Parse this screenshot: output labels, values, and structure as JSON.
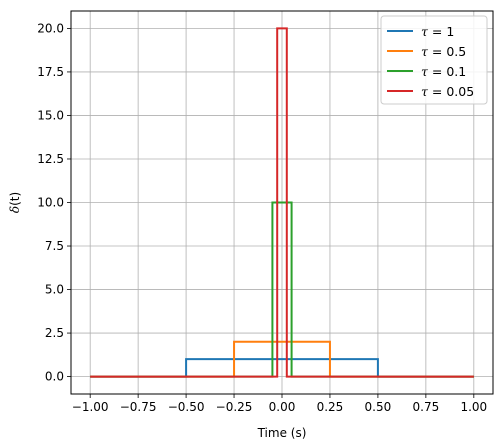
{
  "chart_data": {
    "type": "line",
    "title": "",
    "xlabel": "Time (s)",
    "ylabel_symbol": "δ",
    "ylabel_arg": "(t)",
    "xlim": [
      -1.1,
      1.1
    ],
    "ylim": [
      -1.0,
      21.0
    ],
    "x_ticks": [
      -1.0,
      -0.75,
      -0.5,
      -0.25,
      0.0,
      0.25,
      0.5,
      0.75,
      1.0
    ],
    "x_tick_labels": [
      "−1.00",
      "−0.75",
      "−0.50",
      "−0.25",
      "0.00",
      "0.25",
      "0.50",
      "0.75",
      "1.00"
    ],
    "y_ticks": [
      0,
      2.5,
      5,
      7.5,
      10,
      12.5,
      15,
      17.5,
      20
    ],
    "y_tick_labels": [
      "0.0",
      "2.5",
      "5.0",
      "7.5",
      "10.0",
      "12.5",
      "15.0",
      "17.5",
      "20.0"
    ],
    "grid": true,
    "legend_position": "top-right",
    "series": [
      {
        "name": "= 1",
        "symbol": "τ",
        "color": "#1f77b4",
        "x": [
          -1.0,
          -0.5,
          -0.5,
          0.5,
          0.5,
          1.0
        ],
        "y": [
          0,
          0,
          1,
          1,
          0,
          0
        ]
      },
      {
        "name": "= 0.5",
        "symbol": "τ",
        "color": "#ff7f0e",
        "x": [
          -1.0,
          -0.25,
          -0.25,
          0.25,
          0.25,
          1.0
        ],
        "y": [
          0,
          0,
          2,
          2,
          0,
          0
        ]
      },
      {
        "name": "= 0.1",
        "symbol": "τ",
        "color": "#2ca02c",
        "x": [
          -1.0,
          -0.05,
          -0.05,
          0.05,
          0.05,
          1.0
        ],
        "y": [
          0,
          0,
          10,
          10,
          0,
          0
        ]
      },
      {
        "name": "= 0.05",
        "symbol": "τ",
        "color": "#d62728",
        "x": [
          -1.0,
          -0.025,
          -0.025,
          0.025,
          0.025,
          1.0
        ],
        "y": [
          0,
          0,
          20,
          20,
          0,
          0
        ]
      }
    ]
  }
}
